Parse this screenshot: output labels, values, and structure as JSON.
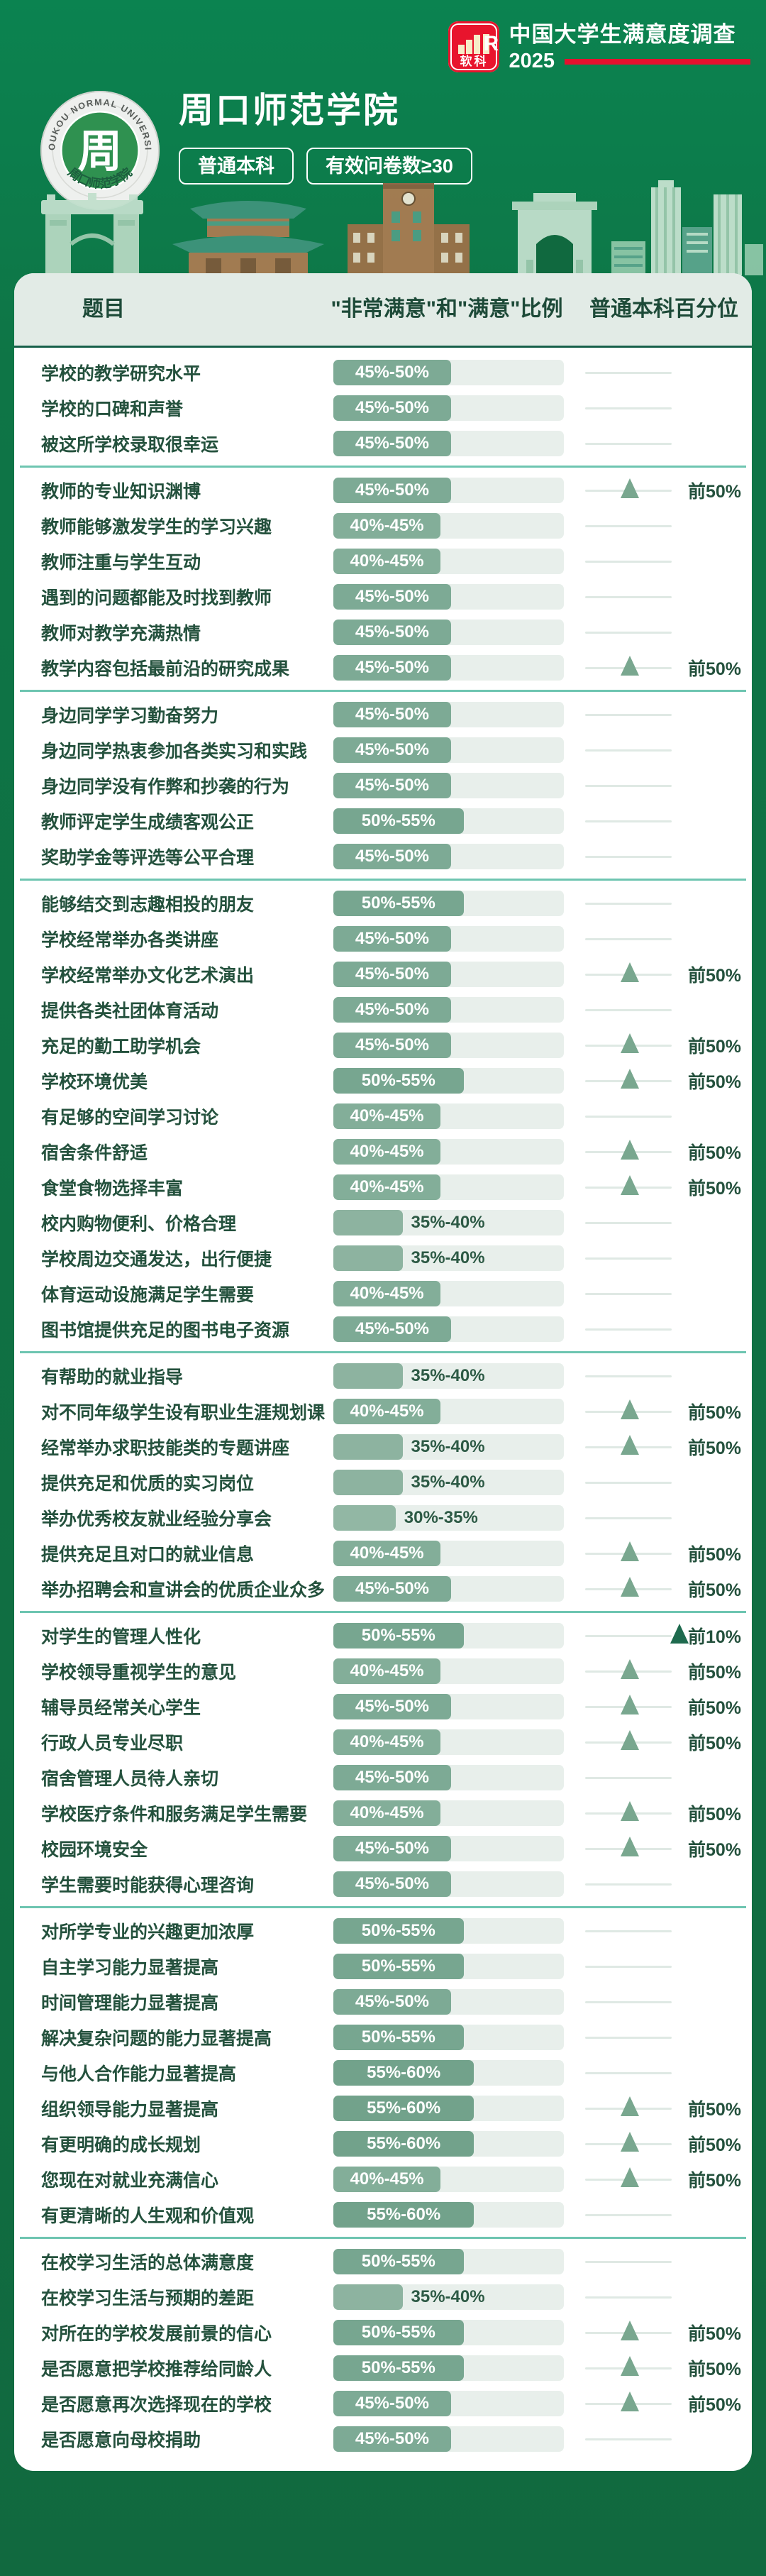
{
  "page": {
    "brand": {
      "logo_text": "软科",
      "logo_mark": "R",
      "title": "中国大学生满意度调查",
      "year": "2025",
      "accent_red": "#e8142d"
    },
    "university": {
      "name": "周口师范学院",
      "badges": [
        "普通本科",
        "有效问卷数≥30"
      ]
    },
    "seal": {
      "arc_text": "ZHOUKOU NORMAL UNIVERSITY",
      "bottom_text": "周口师范学院",
      "center_glyph": "周"
    }
  },
  "table": {
    "headers": [
      "题目",
      "\"非常满意\"和\"满意\"比例",
      "普通本科百分位"
    ]
  },
  "style": {
    "ranges": {
      "30%-35%": {
        "w": 27,
        "color": "#92b7a4"
      },
      "35%-40%": {
        "w": 30,
        "color": "#8db3a0"
      },
      "40%-45%": {
        "w": 46.5,
        "color": "#83ae99"
      },
      "45%-50%": {
        "w": 51,
        "color": "#7daa95"
      },
      "50%-55%": {
        "w": 56.5,
        "color": "#77a690"
      },
      "55%-60%": {
        "w": 61,
        "color": "#72a28b"
      }
    },
    "triangle_top50": "#79a78f",
    "triangle_top10": "#1e6a4e",
    "divider": "#6ec5b1"
  },
  "chart_data": {
    "type": "bar",
    "title": "周口师范学院 — \"非常满意\"和\"满意\"比例（普通本科）",
    "unit": "%",
    "tier_labels": {
      "top50": "前50%",
      "top10": "前10%"
    },
    "sections": [
      {
        "rows": [
          {
            "q": "学校的教学研究水平",
            "range": "45%-50%",
            "tier": null
          },
          {
            "q": "学校的口碑和声誉",
            "range": "45%-50%",
            "tier": null
          },
          {
            "q": "被这所学校录取很幸运",
            "range": "45%-50%",
            "tier": null
          }
        ]
      },
      {
        "rows": [
          {
            "q": "教师的专业知识渊博",
            "range": "45%-50%",
            "tier": "top50"
          },
          {
            "q": "教师能够激发学生的学习兴趣",
            "range": "40%-45%",
            "tier": null
          },
          {
            "q": "教师注重与学生互动",
            "range": "40%-45%",
            "tier": null
          },
          {
            "q": "遇到的问题都能及时找到教师",
            "range": "45%-50%",
            "tier": null
          },
          {
            "q": "教师对教学充满热情",
            "range": "45%-50%",
            "tier": null
          },
          {
            "q": "教学内容包括最前沿的研究成果",
            "range": "45%-50%",
            "tier": "top50"
          }
        ]
      },
      {
        "rows": [
          {
            "q": "身边同学学习勤奋努力",
            "range": "45%-50%",
            "tier": null
          },
          {
            "q": "身边同学热衷参加各类实习和实践",
            "range": "45%-50%",
            "tier": null
          },
          {
            "q": "身边同学没有作弊和抄袭的行为",
            "range": "45%-50%",
            "tier": null
          },
          {
            "q": "教师评定学生成绩客观公正",
            "range": "50%-55%",
            "tier": null
          },
          {
            "q": "奖助学金等评选等公平合理",
            "range": "45%-50%",
            "tier": null
          }
        ]
      },
      {
        "rows": [
          {
            "q": "能够结交到志趣相投的朋友",
            "range": "50%-55%",
            "tier": null
          },
          {
            "q": "学校经常举办各类讲座",
            "range": "45%-50%",
            "tier": null
          },
          {
            "q": "学校经常举办文化艺术演出",
            "range": "45%-50%",
            "tier": "top50"
          },
          {
            "q": "提供各类社团体育活动",
            "range": "45%-50%",
            "tier": null
          },
          {
            "q": "充足的勤工助学机会",
            "range": "45%-50%",
            "tier": "top50"
          },
          {
            "q": "学校环境优美",
            "range": "50%-55%",
            "tier": "top50"
          },
          {
            "q": "有足够的空间学习讨论",
            "range": "40%-45%",
            "tier": null
          },
          {
            "q": "宿舍条件舒适",
            "range": "40%-45%",
            "tier": "top50"
          },
          {
            "q": "食堂食物选择丰富",
            "range": "40%-45%",
            "tier": "top50"
          },
          {
            "q": "校内购物便利、价格合理",
            "range": "35%-40%",
            "tier": null
          },
          {
            "q": "学校周边交通发达，出行便捷",
            "range": "35%-40%",
            "tier": null
          },
          {
            "q": "体育运动设施满足学生需要",
            "range": "40%-45%",
            "tier": null
          },
          {
            "q": "图书馆提供充足的图书电子资源",
            "range": "45%-50%",
            "tier": null
          }
        ]
      },
      {
        "rows": [
          {
            "q": "有帮助的就业指导",
            "range": "35%-40%",
            "tier": null
          },
          {
            "q": "对不同年级学生设有职业生涯规划课",
            "range": "40%-45%",
            "tier": "top50"
          },
          {
            "q": "经常举办求职技能类的专题讲座",
            "range": "35%-40%",
            "tier": "top50"
          },
          {
            "q": "提供充足和优质的实习岗位",
            "range": "35%-40%",
            "tier": null
          },
          {
            "q": "举办优秀校友就业经验分享会",
            "range": "30%-35%",
            "tier": null
          },
          {
            "q": "提供充足且对口的就业信息",
            "range": "40%-45%",
            "tier": "top50"
          },
          {
            "q": "举办招聘会和宣讲会的优质企业众多",
            "range": "45%-50%",
            "tier": "top50"
          }
        ]
      },
      {
        "rows": [
          {
            "q": "对学生的管理人性化",
            "range": "50%-55%",
            "tier": "top10"
          },
          {
            "q": "学校领导重视学生的意见",
            "range": "40%-45%",
            "tier": "top50"
          },
          {
            "q": "辅导员经常关心学生",
            "range": "45%-50%",
            "tier": "top50"
          },
          {
            "q": "行政人员专业尽职",
            "range": "40%-45%",
            "tier": "top50"
          },
          {
            "q": "宿舍管理人员待人亲切",
            "range": "45%-50%",
            "tier": null
          },
          {
            "q": "学校医疗条件和服务满足学生需要",
            "range": "40%-45%",
            "tier": "top50"
          },
          {
            "q": "校园环境安全",
            "range": "45%-50%",
            "tier": "top50"
          },
          {
            "q": "学生需要时能获得心理咨询",
            "range": "45%-50%",
            "tier": null
          }
        ]
      },
      {
        "rows": [
          {
            "q": "对所学专业的兴趣更加浓厚",
            "range": "50%-55%",
            "tier": null
          },
          {
            "q": "自主学习能力显著提高",
            "range": "50%-55%",
            "tier": null
          },
          {
            "q": "时间管理能力显著提高",
            "range": "45%-50%",
            "tier": null
          },
          {
            "q": "解决复杂问题的能力显著提高",
            "range": "50%-55%",
            "tier": null
          },
          {
            "q": "与他人合作能力显著提高",
            "range": "55%-60%",
            "tier": null
          },
          {
            "q": "组织领导能力显著提高",
            "range": "55%-60%",
            "tier": "top50"
          },
          {
            "q": "有更明确的成长规划",
            "range": "55%-60%",
            "tier": "top50"
          },
          {
            "q": "您现在对就业充满信心",
            "range": "40%-45%",
            "tier": "top50"
          },
          {
            "q": "有更清晰的人生观和价值观",
            "range": "55%-60%",
            "tier": null
          }
        ]
      },
      {
        "rows": [
          {
            "q": "在校学习生活的总体满意度",
            "range": "50%-55%",
            "tier": null
          },
          {
            "q": "在校学习生活与预期的差距",
            "range": "35%-40%",
            "tier": null
          },
          {
            "q": "对所在的学校发展前景的信心",
            "range": "50%-55%",
            "tier": "top50"
          },
          {
            "q": "是否愿意把学校推荐给同龄人",
            "range": "50%-55%",
            "tier": "top50"
          },
          {
            "q": "是否愿意再次选择现在的学校",
            "range": "45%-50%",
            "tier": "top50"
          },
          {
            "q": "是否愿意向母校捐助",
            "range": "45%-50%",
            "tier": null
          }
        ]
      }
    ]
  }
}
